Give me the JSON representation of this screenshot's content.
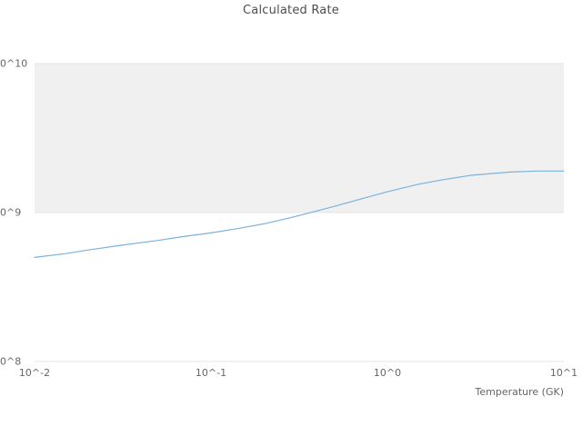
{
  "title": "Calculated Rate",
  "axis": {
    "x_title": "Temperature (GK)",
    "x_tick_labels": [
      "10^-2",
      "10^-1",
      "10^0",
      "10^1"
    ],
    "y_tick_labels": [
      "0^10",
      "0^9",
      "0^8"
    ]
  },
  "colors": {
    "line": "#7ab2dd",
    "band": "#f0f0f0",
    "grid": "#e4e4e4",
    "tick_text": "#666666",
    "title_text": "#4d4d4d"
  },
  "chart_data": {
    "type": "line",
    "title": "Calculated Rate",
    "xlabel": "Temperature (GK)",
    "ylabel": "",
    "x_scale": "log",
    "y_scale": "log",
    "xlim": [
      0.01,
      10
    ],
    "ylim": [
      100000000,
      10000000000
    ],
    "x_tick_values": [
      0.01,
      0.1,
      1,
      10
    ],
    "y_tick_values": [
      10000000000,
      1000000000,
      100000000
    ],
    "grid": "horizontal",
    "legend": "none",
    "shaded_band_y": [
      1000000000,
      10000000000
    ],
    "x": [
      0.01,
      0.015,
      0.02,
      0.03,
      0.05,
      0.07,
      0.1,
      0.15,
      0.2,
      0.3,
      0.5,
      0.7,
      1.0,
      1.5,
      2.0,
      3.0,
      5.0,
      7.0,
      10.0
    ],
    "series": [
      {
        "name": "Calculated Rate",
        "values": [
          500000000,
          530000000,
          560000000,
          600000000,
          650000000,
          690000000,
          730000000,
          790000000,
          840000000,
          940000000,
          1100000000,
          1230000000,
          1380000000,
          1550000000,
          1650000000,
          1780000000,
          1870000000,
          1900000000,
          1900000000
        ]
      }
    ]
  }
}
